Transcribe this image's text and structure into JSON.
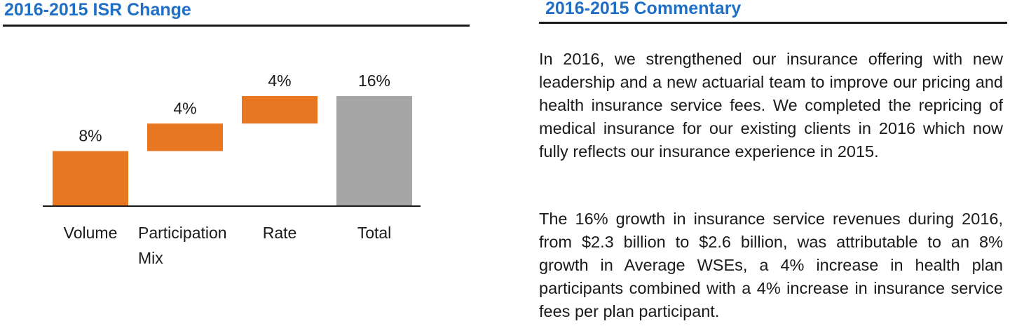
{
  "left_panel": {
    "title": "2016-2015 ISR Change"
  },
  "right_panel": {
    "title": "2016-2015 Commentary",
    "paragraphs": [
      "In 2016, we strengthened our insurance offering with new leadership and a new actuarial team to improve our pricing and health insurance service fees. We completed the repricing of medical insurance for our existing clients in 2016 which now fully reflects our insurance experience in 2015.",
      "The 16% growth in insurance service revenues during 2016, from $2.3 billion to $2.6 billion, was attributable to an 8% growth in Average WSEs, a 4% increase in health plan participants combined with a 4% increase in insurance service fees per plan participant."
    ]
  },
  "chart_data": {
    "type": "bar",
    "subtype": "waterfall",
    "title": "2016-2015 ISR Change",
    "xlabel": "",
    "ylabel": "",
    "unit": "%",
    "ylim": [
      0,
      16
    ],
    "grid": false,
    "legend": "none",
    "categories": [
      {
        "label_lines": [
          "Volume"
        ],
        "value": 8,
        "label": "8%",
        "kind": "step"
      },
      {
        "label_lines": [
          "Participation",
          "Mix"
        ],
        "value": 4,
        "label": "4%",
        "kind": "step"
      },
      {
        "label_lines": [
          "Rate"
        ],
        "value": 4,
        "label": "4%",
        "kind": "step"
      },
      {
        "label_lines": [
          "Total"
        ],
        "value": 16,
        "label": "16%",
        "kind": "total"
      }
    ],
    "colors": {
      "step": "#e87722",
      "total": "#a6a6a6",
      "axis": "#1a1a1a"
    }
  }
}
